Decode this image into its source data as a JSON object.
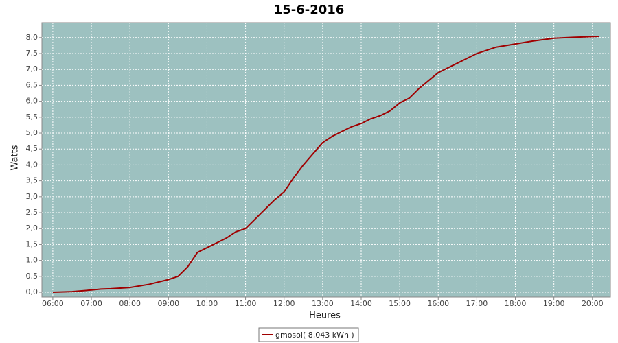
{
  "chart_data": {
    "type": "line",
    "title": "15-6-2016",
    "x_label": "Heures",
    "y_label": "Watts",
    "x": [
      "06:00",
      "06:30",
      "07:00",
      "07:15",
      "07:30",
      "08:00",
      "08:30",
      "09:00",
      "09:15",
      "09:30",
      "09:45",
      "10:00",
      "10:30",
      "10:45",
      "11:00",
      "11:15",
      "11:30",
      "11:45",
      "12:00",
      "12:15",
      "12:30",
      "12:45",
      "13:00",
      "13:15",
      "13:30",
      "13:45",
      "14:00",
      "14:15",
      "14:30",
      "14:45",
      "15:00",
      "15:15",
      "15:30",
      "15:45",
      "16:00",
      "16:30",
      "17:00",
      "17:30",
      "18:00",
      "18:30",
      "19:00",
      "19:30",
      "20:00",
      "20:10"
    ],
    "series": [
      {
        "name": "gmosol( 8,043 kWh )",
        "color": "#a00000",
        "values": [
          0.0,
          0.02,
          0.07,
          0.1,
          0.11,
          0.15,
          0.25,
          0.4,
          0.5,
          0.8,
          1.25,
          1.4,
          1.7,
          1.9,
          2.0,
          2.3,
          2.6,
          2.9,
          3.15,
          3.6,
          4.0,
          4.35,
          4.7,
          4.9,
          5.05,
          5.2,
          5.3,
          5.45,
          5.55,
          5.7,
          5.95,
          6.1,
          6.4,
          6.65,
          6.9,
          7.2,
          7.5,
          7.7,
          7.8,
          7.9,
          7.98,
          8.01,
          8.03,
          8.04
        ]
      }
    ],
    "xlim": [
      "05:43",
      "20:28"
    ],
    "xticks": [
      "06:00",
      "07:00",
      "08:00",
      "09:00",
      "10:00",
      "11:00",
      "12:00",
      "13:00",
      "14:00",
      "15:00",
      "16:00",
      "17:00",
      "18:00",
      "19:00",
      "20:00"
    ],
    "ylim": [
      -0.15,
      8.47
    ],
    "yticks": [
      {
        "value": 0,
        "label": "0,0"
      },
      {
        "value": 0.5,
        "label": "0,5"
      },
      {
        "value": 1,
        "label": "1,0"
      },
      {
        "value": 1.5,
        "label": "1,5"
      },
      {
        "value": 2,
        "label": "2,0"
      },
      {
        "value": 2.5,
        "label": "2,5"
      },
      {
        "value": 3,
        "label": "3,0"
      },
      {
        "value": 3.5,
        "label": "3,5"
      },
      {
        "value": 4,
        "label": "4,0"
      },
      {
        "value": 4.5,
        "label": "4,5"
      },
      {
        "value": 5,
        "label": "5,0"
      },
      {
        "value": 5.5,
        "label": "5,5"
      },
      {
        "value": 6,
        "label": "6,0"
      },
      {
        "value": 6.5,
        "label": "6,5"
      },
      {
        "value": 7,
        "label": "7,0"
      },
      {
        "value": 7.5,
        "label": "7,5"
      },
      {
        "value": 8,
        "label": "8,0"
      }
    ],
    "grid": true,
    "plot_background": "#9dc1c0"
  }
}
